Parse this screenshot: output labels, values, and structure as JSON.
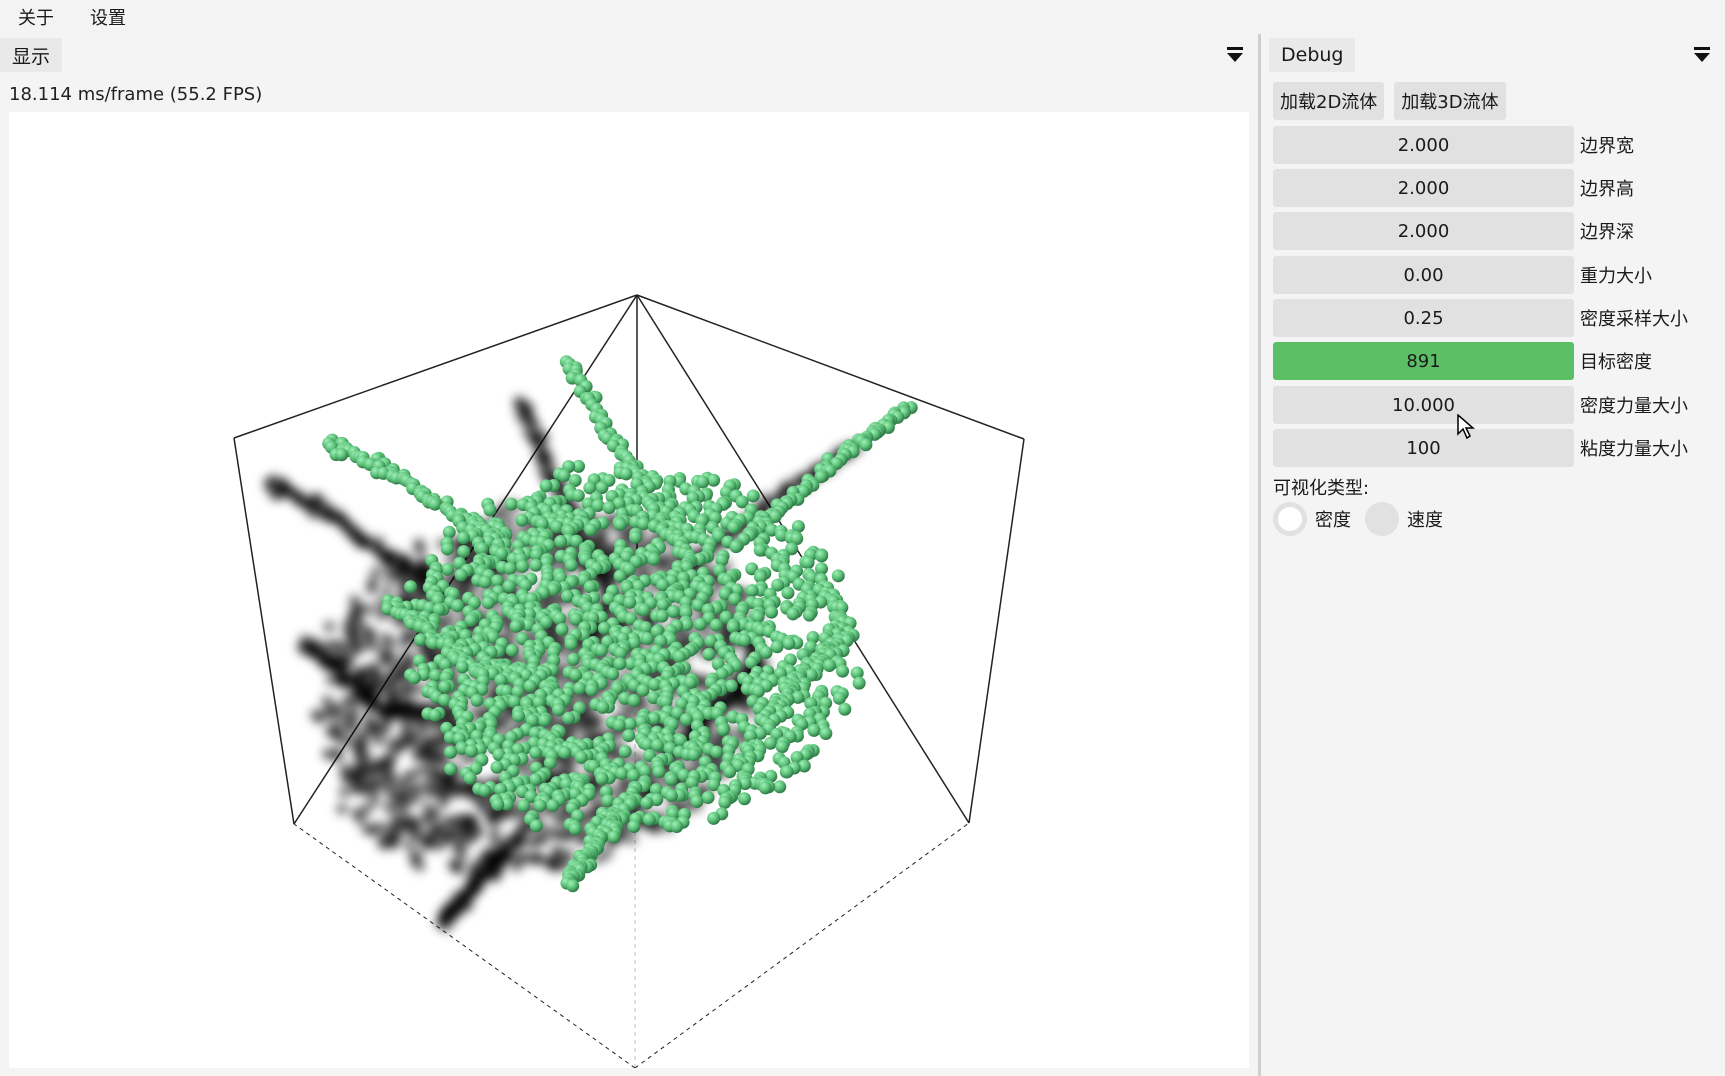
{
  "menubar": {
    "items": [
      "关于",
      "设置"
    ]
  },
  "left_panel": {
    "tab_label": "显示",
    "fps_text": "18.114 ms/frame (55.2 FPS)"
  },
  "right_panel": {
    "tab_label": "Debug",
    "buttons": {
      "load_2d": "加载2D流体",
      "load_3d": "加载3D流体"
    },
    "params": [
      {
        "value": "2.000",
        "label": "边界宽"
      },
      {
        "value": "2.000",
        "label": "边界高"
      },
      {
        "value": "2.000",
        "label": "边界深"
      },
      {
        "value": "0.00",
        "label": "重力大小"
      },
      {
        "value": "0.25",
        "label": "密度采样大小"
      },
      {
        "value": "891",
        "label": "目标密度"
      },
      {
        "value": "10.000",
        "label": "密度力量大小"
      },
      {
        "value": "100",
        "label": "粘度力量大小"
      }
    ],
    "active_param_index": 5,
    "visualization": {
      "label": "可视化类型:",
      "options": [
        "密度",
        "速度"
      ],
      "selected": "密度"
    }
  },
  "colors": {
    "particle": "#5ec27a",
    "active_field": "#5cbf66",
    "field_bg": "#e1e1e1"
  },
  "icons": {
    "panel_menu": "dropdown-menu-icon",
    "cursor": "mouse-pointer-icon"
  }
}
